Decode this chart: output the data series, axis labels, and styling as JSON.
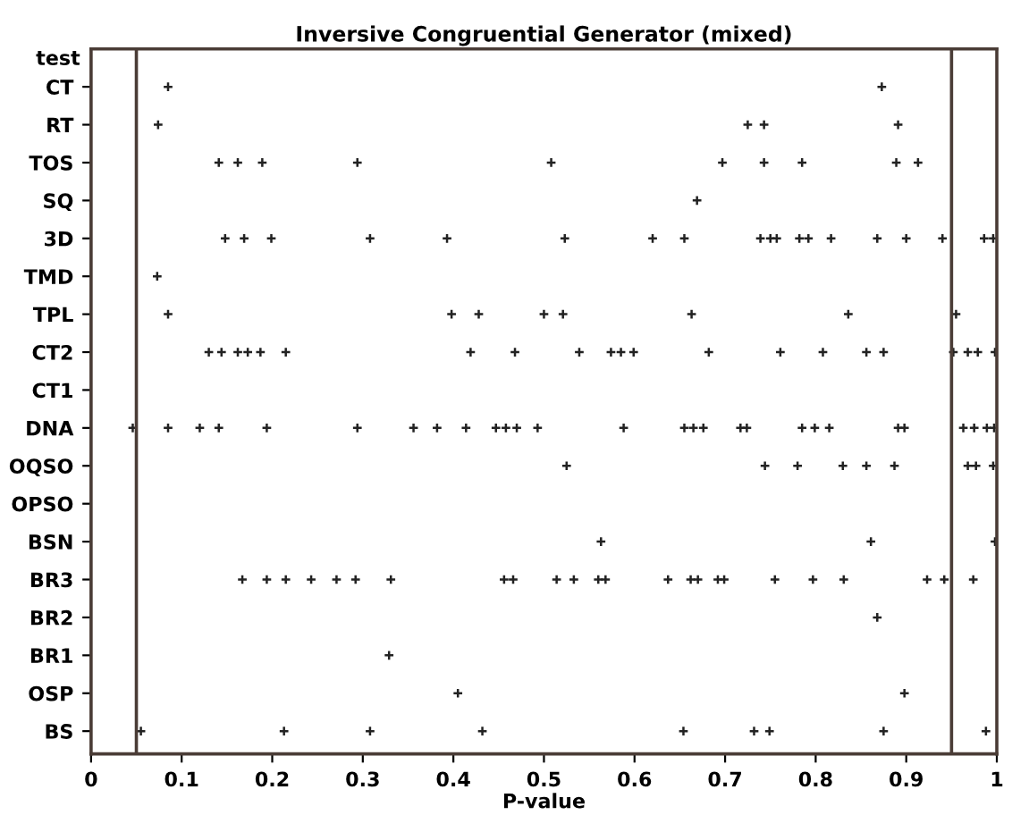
{
  "chart_data": {
    "type": "scatter",
    "orientation": "horizontal",
    "title": "Inversive Congruential Generator (mixed)",
    "xlabel": "P-value",
    "ylabel": "test",
    "categories": [
      "CT",
      "RT",
      "TOS",
      "SQ",
      "3D",
      "TMD",
      "TPL",
      "CT2",
      "CT1",
      "DNA",
      "OQSO",
      "OPSO",
      "BSN",
      "BR3",
      "BR2",
      "BR1",
      "OSP",
      "BS"
    ],
    "series": [
      {
        "color": "#222222",
        "x": [
          "CT",
          "CT"
        ],
        "values": [
          0.085,
          0.873
        ]
      },
      {
        "color": "#222222",
        "x": [
          "RT",
          "RT",
          "RT",
          "RT"
        ],
        "values": [
          0.074,
          0.725,
          0.743,
          0.891
        ]
      },
      {
        "color": "#222222",
        "x": [
          "TOS",
          "TOS",
          "TOS",
          "TOS",
          "TOS",
          "TOS",
          "TOS",
          "TOS",
          "TOS",
          "TOS"
        ],
        "values": [
          0.141,
          0.162,
          0.189,
          0.294,
          0.508,
          0.697,
          0.743,
          0.785,
          0.889,
          0.913
        ]
      },
      {
        "color": "#222222",
        "x": [
          "SQ"
        ],
        "values": [
          0.669
        ]
      },
      {
        "color": "#222222",
        "x": [
          "3D",
          "3D",
          "3D",
          "3D",
          "3D",
          "3D",
          "3D",
          "3D",
          "3D",
          "3D",
          "3D",
          "3D",
          "3D",
          "3D",
          "3D",
          "3D",
          "3D",
          "3D",
          "3D"
        ],
        "values": [
          0.148,
          0.169,
          0.199,
          0.308,
          0.393,
          0.523,
          0.62,
          0.655,
          0.739,
          0.75,
          0.757,
          0.782,
          0.792,
          0.817,
          0.868,
          0.9,
          0.94,
          0.986,
          0.996
        ]
      },
      {
        "color": "#222222",
        "x": [
          "TMD"
        ],
        "values": [
          0.073
        ]
      },
      {
        "color": "#222222",
        "x": [
          "TPL",
          "TPL",
          "TPL",
          "TPL",
          "TPL",
          "TPL",
          "TPL",
          "TPL"
        ],
        "values": [
          0.085,
          0.398,
          0.428,
          0.5,
          0.521,
          0.663,
          0.836,
          0.955
        ]
      },
      {
        "color": "#222222",
        "x": [
          "CT2",
          "CT2",
          "CT2",
          "CT2",
          "CT2",
          "CT2",
          "CT2",
          "CT2",
          "CT2",
          "CT2",
          "CT2",
          "CT2",
          "CT2",
          "CT2",
          "CT2",
          "CT2",
          "CT2",
          "CT2",
          "CT2",
          "CT2",
          "CT2"
        ],
        "values": [
          0.13,
          0.144,
          0.162,
          0.173,
          0.187,
          0.215,
          0.419,
          0.468,
          0.539,
          0.574,
          0.585,
          0.599,
          0.682,
          0.761,
          0.808,
          0.856,
          0.875,
          0.952,
          0.968,
          0.979,
          0.998
        ]
      },
      {
        "color": "#222222",
        "x": [
          "DNA",
          "DNA",
          "DNA",
          "DNA",
          "DNA",
          "DNA",
          "DNA",
          "DNA",
          "DNA",
          "DNA",
          "DNA",
          "DNA",
          "DNA",
          "DNA",
          "DNA",
          "DNA",
          "DNA",
          "DNA",
          "DNA",
          "DNA",
          "DNA",
          "DNA",
          "DNA",
          "DNA",
          "DNA",
          "DNA",
          "DNA",
          "DNA"
        ],
        "values": [
          0.046,
          0.085,
          0.12,
          0.141,
          0.194,
          0.294,
          0.356,
          0.382,
          0.414,
          0.447,
          0.458,
          0.47,
          0.493,
          0.588,
          0.655,
          0.665,
          0.676,
          0.717,
          0.724,
          0.785,
          0.799,
          0.815,
          0.891,
          0.898,
          0.963,
          0.975,
          0.989,
          0.997
        ]
      },
      {
        "color": "#222222",
        "x": [
          "OQSO",
          "OQSO",
          "OQSO",
          "OQSO",
          "OQSO",
          "OQSO",
          "OQSO",
          "OQSO",
          "OQSO"
        ],
        "values": [
          0.525,
          0.744,
          0.78,
          0.83,
          0.856,
          0.887,
          0.968,
          0.977,
          0.996
        ]
      },
      {
        "color": "#222222",
        "x": [
          "BSN",
          "BSN",
          "BSN"
        ],
        "values": [
          0.563,
          0.861,
          0.998
        ]
      },
      {
        "color": "#222222",
        "x": [
          "BR3",
          "BR3",
          "BR3",
          "BR3",
          "BR3",
          "BR3",
          "BR3",
          "BR3",
          "BR3",
          "BR3",
          "BR3",
          "BR3",
          "BR3",
          "BR3",
          "BR3",
          "BR3",
          "BR3",
          "BR3",
          "BR3",
          "BR3",
          "BR3",
          "BR3",
          "BR3",
          "BR3"
        ],
        "values": [
          0.167,
          0.194,
          0.215,
          0.243,
          0.271,
          0.292,
          0.331,
          0.456,
          0.466,
          0.514,
          0.533,
          0.56,
          0.568,
          0.637,
          0.662,
          0.67,
          0.692,
          0.699,
          0.755,
          0.797,
          0.831,
          0.923,
          0.942,
          0.974
        ]
      },
      {
        "color": "#222222",
        "x": [
          "BR2"
        ],
        "values": [
          0.868
        ]
      },
      {
        "color": "#222222",
        "x": [
          "BR1"
        ],
        "values": [
          0.329
        ]
      },
      {
        "color": "#222222",
        "x": [
          "OSP",
          "OSP"
        ],
        "values": [
          0.405,
          0.898
        ]
      },
      {
        "color": "#222222",
        "x": [
          "BS",
          "BS",
          "BS",
          "BS",
          "BS",
          "BS",
          "BS",
          "BS",
          "BS"
        ],
        "values": [
          0.055,
          0.213,
          0.308,
          0.432,
          0.654,
          0.732,
          0.749,
          0.875,
          0.988
        ]
      }
    ],
    "marker": "cross",
    "xlim": [
      0,
      1
    ],
    "xticks": [
      0,
      0.1,
      0.2,
      0.3,
      0.4,
      0.5,
      0.6,
      0.7,
      0.8,
      0.9,
      1
    ],
    "ref_lines": [
      {
        "axis": "x",
        "value": 0.05,
        "color": "#4a3c36"
      },
      {
        "axis": "x",
        "value": 0.95,
        "color": "#4a3c36"
      }
    ],
    "grid": false,
    "legend": false
  }
}
